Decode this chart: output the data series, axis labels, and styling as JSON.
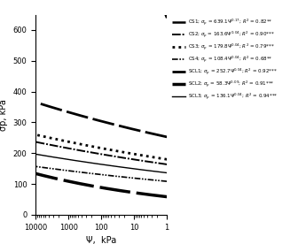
{
  "xlabel": "Ψ,  kPa",
  "ylabel": "σp, kPa",
  "xlim_left": 10000,
  "xlim_right": 1,
  "ylim": [
    0,
    650
  ],
  "curves": [
    {
      "A": 639.1,
      "B": 0.17,
      "ls_type": "longdash",
      "lw": 1.8
    },
    {
      "A": 163.6,
      "B": 0.04,
      "ls_type": "dashdot",
      "lw": 1.4
    },
    {
      "A": 179.8,
      "B": 0.04,
      "ls_type": "densedot",
      "lw": 2.0
    },
    {
      "A": 108.4,
      "B": 0.04,
      "ls_type": "dashdotdot",
      "lw": 1.2
    },
    {
      "A": 252.7,
      "B": 0.04,
      "ls_type": "longdash2",
      "lw": 2.0
    },
    {
      "A": 58.3,
      "B": 0.09,
      "ls_type": "longdash3",
      "lw": 2.5
    },
    {
      "A": 136.1,
      "B": 0.04,
      "ls_type": "solid",
      "lw": 1.0
    }
  ],
  "legend_texts": [
    "CS1; σp = 639.1Ψ^{0.17}; R² = 0.82**",
    "CS2; σp = 163.6Ψ^{0.04}; R² = 0.90***",
    "CS3; σp = 179.8Ψ^{0.04}; R² = 0.79***",
    "CS4; σp = 108.4Ψ^{0.04}; R² = 0.68**",
    "SCL1; σp = 252.7Ψ^{0.04}; R² = 0.92***",
    "SCL2; σp = 58.3Ψ^{0.09}; R² = 0.91***",
    "SCL3; σp = 136.1Ψ^{0.04}; R² = 0.94***"
  ],
  "yticks": [
    0,
    100,
    200,
    300,
    400,
    500,
    600
  ],
  "xticks": [
    10000,
    1000,
    100,
    10,
    1
  ]
}
